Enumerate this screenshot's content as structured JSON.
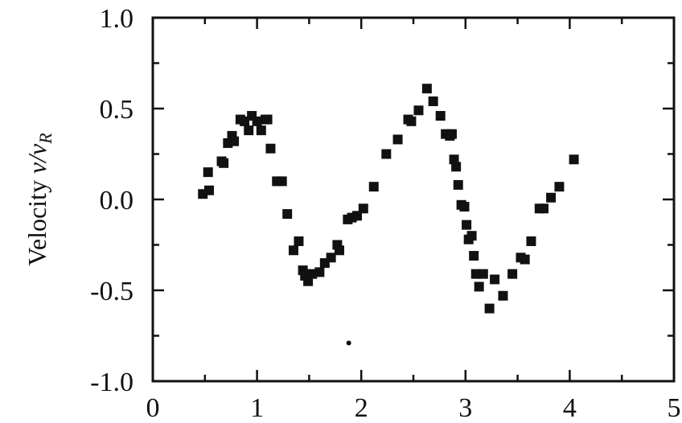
{
  "chart_data": {
    "type": "scatter",
    "title": "",
    "xlabel": "",
    "ylabel_prefix": "Velocity ",
    "ylabel_math": "v/v",
    "ylabel_sub": "R",
    "xlim": [
      0,
      5
    ],
    "ylim": [
      -1.0,
      1.0
    ],
    "xticks": [
      0,
      1,
      2,
      3,
      4,
      5
    ],
    "xtick_labels": [
      "0",
      "1",
      "2",
      "3",
      "4",
      "5"
    ],
    "yticks": [
      1.0,
      0.5,
      0.0,
      -0.5,
      -1.0
    ],
    "ytick_labels": [
      "1.0",
      "0.5",
      "0.0",
      "-0.5",
      "-1.0"
    ],
    "grid": false,
    "series": [
      {
        "marker": "square",
        "color": "#111111",
        "x": [
          0.48,
          0.53,
          0.54,
          0.66,
          0.68,
          0.72,
          0.76,
          0.78,
          0.84,
          0.88,
          0.92,
          0.95,
          1.0,
          1.04,
          1.08,
          1.1,
          1.13,
          1.19,
          1.24,
          1.29,
          1.35,
          1.4,
          1.44,
          1.46,
          1.49,
          1.53,
          1.6,
          1.65,
          1.71,
          1.77,
          1.79,
          1.87,
          1.91,
          1.96,
          2.02,
          2.12,
          2.24,
          2.35,
          2.45,
          2.48,
          2.55,
          2.63,
          2.69,
          2.76,
          2.81,
          2.85,
          2.87,
          2.89,
          2.91,
          2.93,
          2.96,
          2.99,
          3.01,
          3.03,
          3.06,
          3.08,
          3.1,
          3.13,
          3.17,
          3.23,
          3.28,
          3.36,
          3.45,
          3.53,
          3.57,
          3.63,
          3.71,
          3.75,
          3.82,
          3.9,
          4.04
        ],
        "y": [
          0.03,
          0.15,
          0.05,
          0.21,
          0.2,
          0.31,
          0.35,
          0.32,
          0.44,
          0.43,
          0.38,
          0.46,
          0.43,
          0.38,
          0.44,
          0.44,
          0.28,
          0.1,
          0.1,
          -0.08,
          -0.28,
          -0.23,
          -0.39,
          -0.42,
          -0.45,
          -0.41,
          -0.4,
          -0.35,
          -0.32,
          -0.25,
          -0.28,
          -0.11,
          -0.1,
          -0.09,
          -0.05,
          0.07,
          0.25,
          0.33,
          0.44,
          0.43,
          0.49,
          0.61,
          0.54,
          0.46,
          0.36,
          0.35,
          0.36,
          0.22,
          0.18,
          0.08,
          -0.03,
          -0.04,
          -0.14,
          -0.22,
          -0.2,
          -0.31,
          -0.41,
          -0.48,
          -0.41,
          -0.6,
          -0.44,
          -0.53,
          -0.41,
          -0.32,
          -0.33,
          -0.23,
          -0.05,
          -0.05,
          0.01,
          0.07,
          0.22
        ]
      },
      {
        "marker": "dot",
        "color": "#111111",
        "x": [
          1.88
        ],
        "y": [
          -0.79
        ]
      }
    ]
  }
}
